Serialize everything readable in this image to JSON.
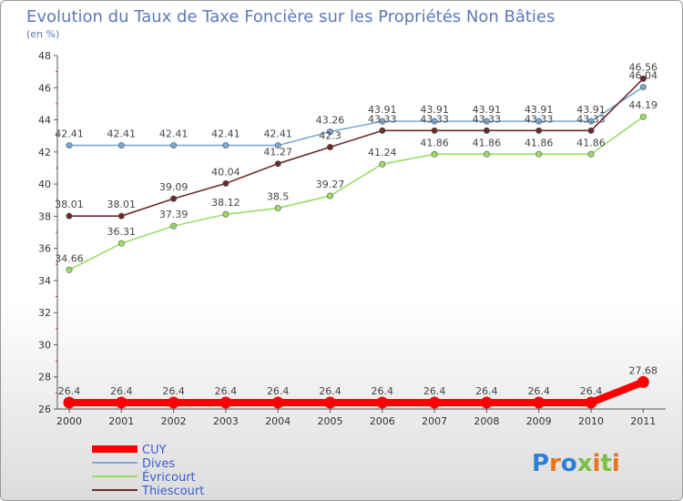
{
  "chart_data": {
    "type": "line",
    "title": "Evolution du Taux de Taxe Foncière sur les Propriétés Non Bâties",
    "ylabel": "(en %)",
    "xlabel": "",
    "ylim": [
      26,
      48
    ],
    "yticks": [
      "26",
      "28",
      "30",
      "32",
      "34",
      "36",
      "38",
      "40",
      "42",
      "44",
      "46",
      "48"
    ],
    "categories": [
      "2000",
      "2001",
      "2002",
      "2003",
      "2004",
      "2005",
      "2006",
      "2007",
      "2008",
      "2009",
      "2010",
      "2011"
    ],
    "series": [
      {
        "name": "CUY",
        "color": "#ff0000",
        "values": [
          26.4,
          26.4,
          26.4,
          26.4,
          26.4,
          26.4,
          26.4,
          26.4,
          26.4,
          26.4,
          26.4,
          27.68
        ],
        "labels": [
          "26.4",
          "26.4",
          "26.4",
          "26.4",
          "26.4",
          "26.4",
          "26.4",
          "26.4",
          "26.4",
          "26.4",
          "26.4",
          "27.68"
        ]
      },
      {
        "name": "Dives",
        "color": "#7aaad4",
        "values": [
          42.41,
          42.41,
          42.41,
          42.41,
          42.41,
          43.26,
          43.91,
          43.91,
          43.91,
          43.91,
          43.91,
          46.04
        ],
        "labels": [
          "42.41",
          "42.41",
          "42.41",
          "42.41",
          "42.41",
          "43.26",
          "43.91",
          "43.91",
          "43.91",
          "43.91",
          "43.91",
          "46.04"
        ]
      },
      {
        "name": "Évricourt",
        "color": "#99dd66",
        "values": [
          34.66,
          36.31,
          37.39,
          38.12,
          38.5,
          39.27,
          41.24,
          41.86,
          41.86,
          41.86,
          41.86,
          44.19
        ],
        "labels": [
          "34.66",
          "36.31",
          "37.39",
          "38.12",
          "38.5",
          "39.27",
          "41.24",
          "41.86",
          "41.86",
          "41.86",
          "41.86",
          "44.19"
        ]
      },
      {
        "name": "Thiescourt",
        "color": "#6b2b2b",
        "values": [
          38.01,
          38.01,
          39.09,
          40.04,
          41.27,
          42.3,
          43.33,
          43.33,
          43.33,
          43.33,
          43.33,
          46.56
        ],
        "labels": [
          "38.01",
          "38.01",
          "39.09",
          "40.04",
          "41.27",
          "42.3",
          "43.33",
          "43.33",
          "43.33",
          "43.33",
          "43.33",
          "46.56"
        ]
      }
    ],
    "legend_position": "bottom-left",
    "grid": false
  },
  "logo": {
    "text": "Proxiti"
  }
}
